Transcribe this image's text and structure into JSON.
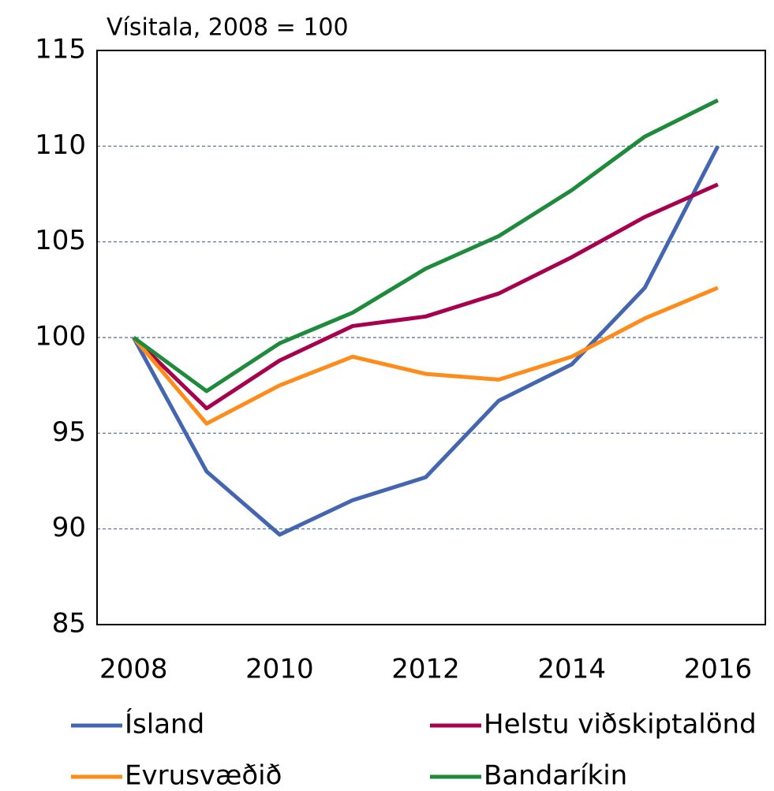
{
  "chart_data": {
    "type": "line",
    "title": "Vísitala, 2008 = 100",
    "x": [
      2008,
      2009,
      2010,
      2011,
      2012,
      2013,
      2014,
      2015,
      2016
    ],
    "series": [
      {
        "name": "Ísland",
        "color": "#4466b0",
        "values": [
          100,
          93.0,
          89.7,
          91.5,
          92.7,
          96.7,
          98.6,
          102.6,
          110.0
        ]
      },
      {
        "name": "Helstu viðskiptalönd",
        "color": "#a6004f",
        "values": [
          100,
          96.3,
          98.8,
          100.6,
          101.1,
          102.3,
          104.2,
          106.3,
          108.0
        ]
      },
      {
        "name": "Evrusvæðið",
        "color": "#ff8c1a",
        "values": [
          100,
          95.5,
          97.5,
          99.0,
          98.1,
          97.8,
          99.0,
          101.0,
          102.6
        ]
      },
      {
        "name": "Bandaríkin",
        "color": "#1e8a3c",
        "values": [
          100,
          97.2,
          99.7,
          101.3,
          103.6,
          105.3,
          107.7,
          110.5,
          112.4
        ]
      }
    ],
    "xlim": [
      2007.5,
      2016.65
    ],
    "xticks": [
      2008,
      2010,
      2012,
      2014,
      2016
    ],
    "ylim": [
      85,
      115
    ],
    "yticks": [
      85,
      90,
      95,
      100,
      105,
      110,
      115
    ],
    "grid": true
  }
}
